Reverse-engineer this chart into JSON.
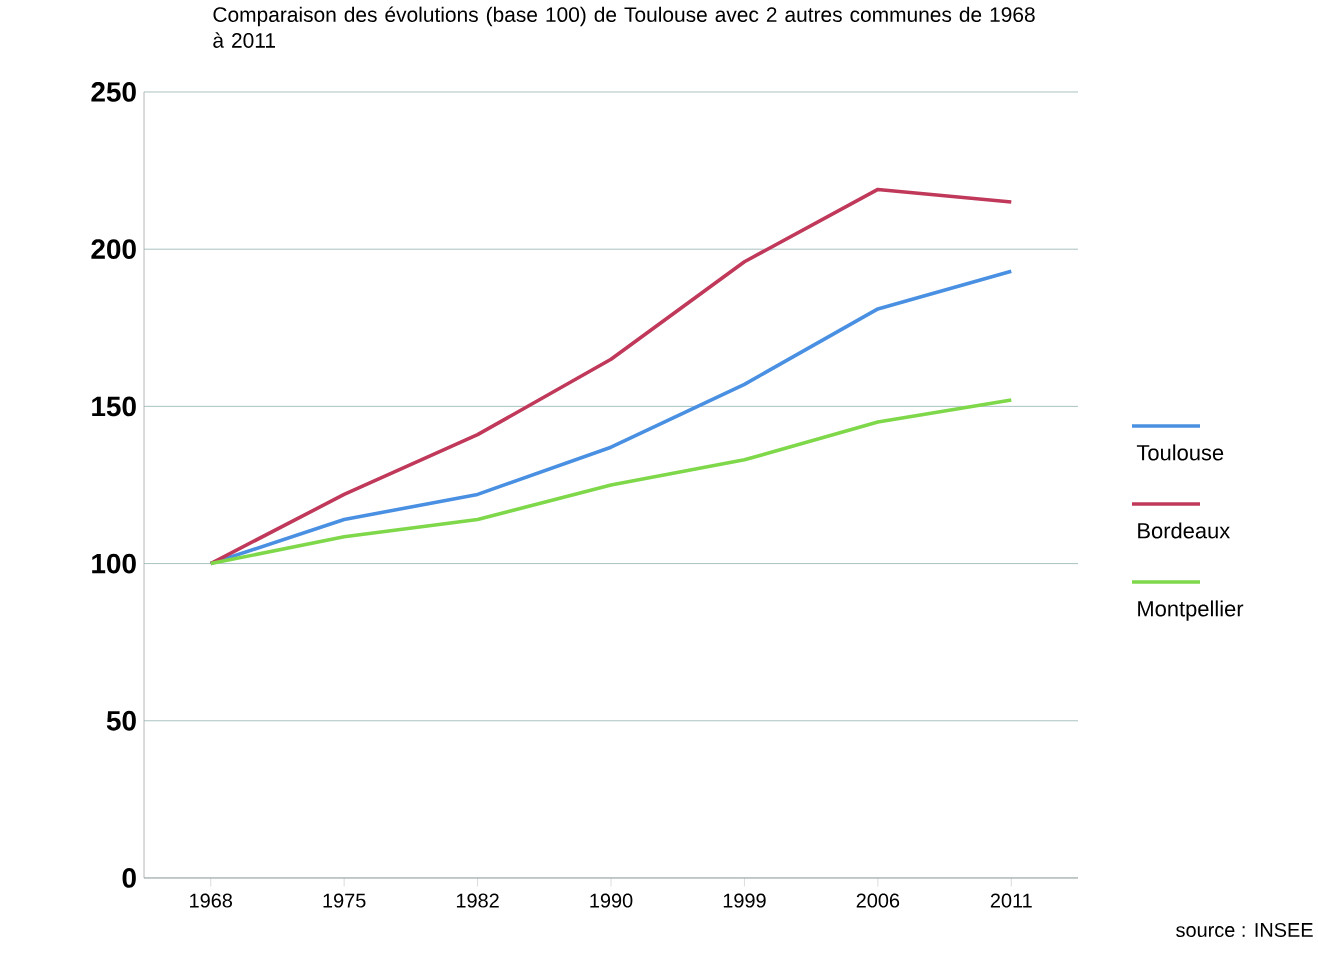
{
  "chart_data": {
    "type": "line",
    "title": "Comparaison des évolutions (base 100) de Toulouse avec 2 autres communes de 1968 à 2011",
    "categories": [
      "1968",
      "1975",
      "1982",
      "1990",
      "1999",
      "2006",
      "2011"
    ],
    "series": [
      {
        "name": "Toulouse",
        "color": "#4a90e2",
        "values": [
          100,
          114,
          122,
          137,
          157,
          181,
          193
        ]
      },
      {
        "name": "Bordeaux",
        "color": "#c0395a",
        "values": [
          100,
          122,
          141,
          165,
          196,
          219,
          215
        ]
      },
      {
        "name": "Montpellier",
        "color": "#7ed84a",
        "values": [
          100,
          108.5,
          114,
          125,
          133,
          145,
          152
        ]
      }
    ],
    "ylim": [
      0,
      250
    ],
    "yticks": [
      0,
      50,
      100,
      150,
      200,
      250
    ],
    "grid": "y",
    "legend": "right",
    "marker": "none",
    "line_style": "solid",
    "annotations": [
      "source : INSEE"
    ]
  }
}
